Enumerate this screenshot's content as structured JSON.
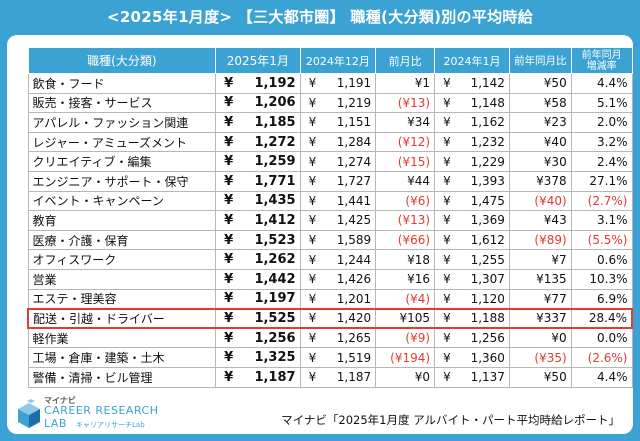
{
  "title": "<2025年1月度> 【三大都市圏】 職種(大分類)別の平均時給",
  "chart_data": {
    "type": "table",
    "columns": [
      "職種(大分類)",
      "2025年1月",
      "2024年12月",
      "前月比",
      "2024年1月",
      "前年同月比",
      "前年同月 増減率"
    ],
    "rows": [
      {
        "job": "飲食・フード",
        "jan2025": "1,192",
        "dec2024": "1,191",
        "mom": "¥1",
        "mom_neg": false,
        "jan2024": "1,142",
        "yoy": "¥50",
        "yoy_neg": false,
        "rate": "4.4%",
        "rate_neg": false
      },
      {
        "job": "販売・接客・サービス",
        "jan2025": "1,206",
        "dec2024": "1,219",
        "mom": "(¥13)",
        "mom_neg": true,
        "jan2024": "1,148",
        "yoy": "¥58",
        "yoy_neg": false,
        "rate": "5.1%",
        "rate_neg": false
      },
      {
        "job": "アパレル・ファッション関連",
        "jan2025": "1,185",
        "dec2024": "1,151",
        "mom": "¥34",
        "mom_neg": false,
        "jan2024": "1,162",
        "yoy": "¥23",
        "yoy_neg": false,
        "rate": "2.0%",
        "rate_neg": false
      },
      {
        "job": "レジャー・アミューズメント",
        "jan2025": "1,272",
        "dec2024": "1,284",
        "mom": "(¥12)",
        "mom_neg": true,
        "jan2024": "1,232",
        "yoy": "¥40",
        "yoy_neg": false,
        "rate": "3.2%",
        "rate_neg": false
      },
      {
        "job": "クリエイティブ・編集",
        "jan2025": "1,259",
        "dec2024": "1,274",
        "mom": "(¥15)",
        "mom_neg": true,
        "jan2024": "1,229",
        "yoy": "¥30",
        "yoy_neg": false,
        "rate": "2.4%",
        "rate_neg": false
      },
      {
        "job": "エンジニア・サポート・保守",
        "jan2025": "1,771",
        "dec2024": "1,727",
        "mom": "¥44",
        "mom_neg": false,
        "jan2024": "1,393",
        "yoy": "¥378",
        "yoy_neg": false,
        "rate": "27.1%",
        "rate_neg": false
      },
      {
        "job": "イベント・キャンペーン",
        "jan2025": "1,435",
        "dec2024": "1,441",
        "mom": "(¥6)",
        "mom_neg": true,
        "jan2024": "1,475",
        "yoy": "(¥40)",
        "yoy_neg": true,
        "rate": "(2.7%)",
        "rate_neg": true
      },
      {
        "job": "教育",
        "jan2025": "1,412",
        "dec2024": "1,425",
        "mom": "(¥13)",
        "mom_neg": true,
        "jan2024": "1,369",
        "yoy": "¥43",
        "yoy_neg": false,
        "rate": "3.1%",
        "rate_neg": false
      },
      {
        "job": "医療・介護・保育",
        "jan2025": "1,523",
        "dec2024": "1,589",
        "mom": "(¥66)",
        "mom_neg": true,
        "jan2024": "1,612",
        "yoy": "(¥89)",
        "yoy_neg": true,
        "rate": "(5.5%)",
        "rate_neg": true
      },
      {
        "job": "オフィスワーク",
        "jan2025": "1,262",
        "dec2024": "1,244",
        "mom": "¥18",
        "mom_neg": false,
        "jan2024": "1,255",
        "yoy": "¥7",
        "yoy_neg": false,
        "rate": "0.6%",
        "rate_neg": false
      },
      {
        "job": "営業",
        "jan2025": "1,442",
        "dec2024": "1,426",
        "mom": "¥16",
        "mom_neg": false,
        "jan2024": "1,307",
        "yoy": "¥135",
        "yoy_neg": false,
        "rate": "10.3%",
        "rate_neg": false
      },
      {
        "job": "エステ・理美容",
        "jan2025": "1,197",
        "dec2024": "1,201",
        "mom": "(¥4)",
        "mom_neg": true,
        "jan2024": "1,120",
        "yoy": "¥77",
        "yoy_neg": false,
        "rate": "6.9%",
        "rate_neg": false
      },
      {
        "job": "配送・引越・ドライバー",
        "jan2025": "1,525",
        "dec2024": "1,420",
        "mom": "¥105",
        "mom_neg": false,
        "jan2024": "1,188",
        "yoy": "¥337",
        "yoy_neg": false,
        "rate": "28.4%",
        "rate_neg": false,
        "highlight": true
      },
      {
        "job": "軽作業",
        "jan2025": "1,256",
        "dec2024": "1,265",
        "mom": "(¥9)",
        "mom_neg": true,
        "jan2024": "1,256",
        "yoy": "¥0",
        "yoy_neg": false,
        "rate": "0.0%",
        "rate_neg": false
      },
      {
        "job": "工場・倉庫・建築・土木",
        "jan2025": "1,325",
        "dec2024": "1,519",
        "mom": "(¥194)",
        "mom_neg": true,
        "jan2024": "1,360",
        "yoy": "(¥35)",
        "yoy_neg": true,
        "rate": "(2.6%)",
        "rate_neg": true
      },
      {
        "job": "警備・清掃・ビル管理",
        "jan2025": "1,187",
        "dec2024": "1,187",
        "mom": "¥0",
        "mom_neg": false,
        "jan2024": "1,137",
        "yoy": "¥50",
        "yoy_neg": false,
        "rate": "4.4%",
        "rate_neg": false
      }
    ]
  },
  "header": {
    "job": "職種(大分類)",
    "jan2025": "2025年1月",
    "dec2024": "2024年12月",
    "mom": "前月比",
    "jan2024": "2024年1月",
    "yoy": "前年同月比",
    "rate_line1": "前年同月",
    "rate_line2": "増減率"
  },
  "yen_symbol": "¥",
  "colors": {
    "accent": "#3aa3d4",
    "negative": "#e23b2f",
    "highlight_border": "#e23b2f"
  },
  "logo": {
    "brand": "マイナビ",
    "line1": "CAREER RESEARCH",
    "line2": "LAB",
    "sub": "キャリアリサーチLab"
  },
  "source": "マイナビ「2025年1月度 アルバイト・パート平均時給レポート」"
}
